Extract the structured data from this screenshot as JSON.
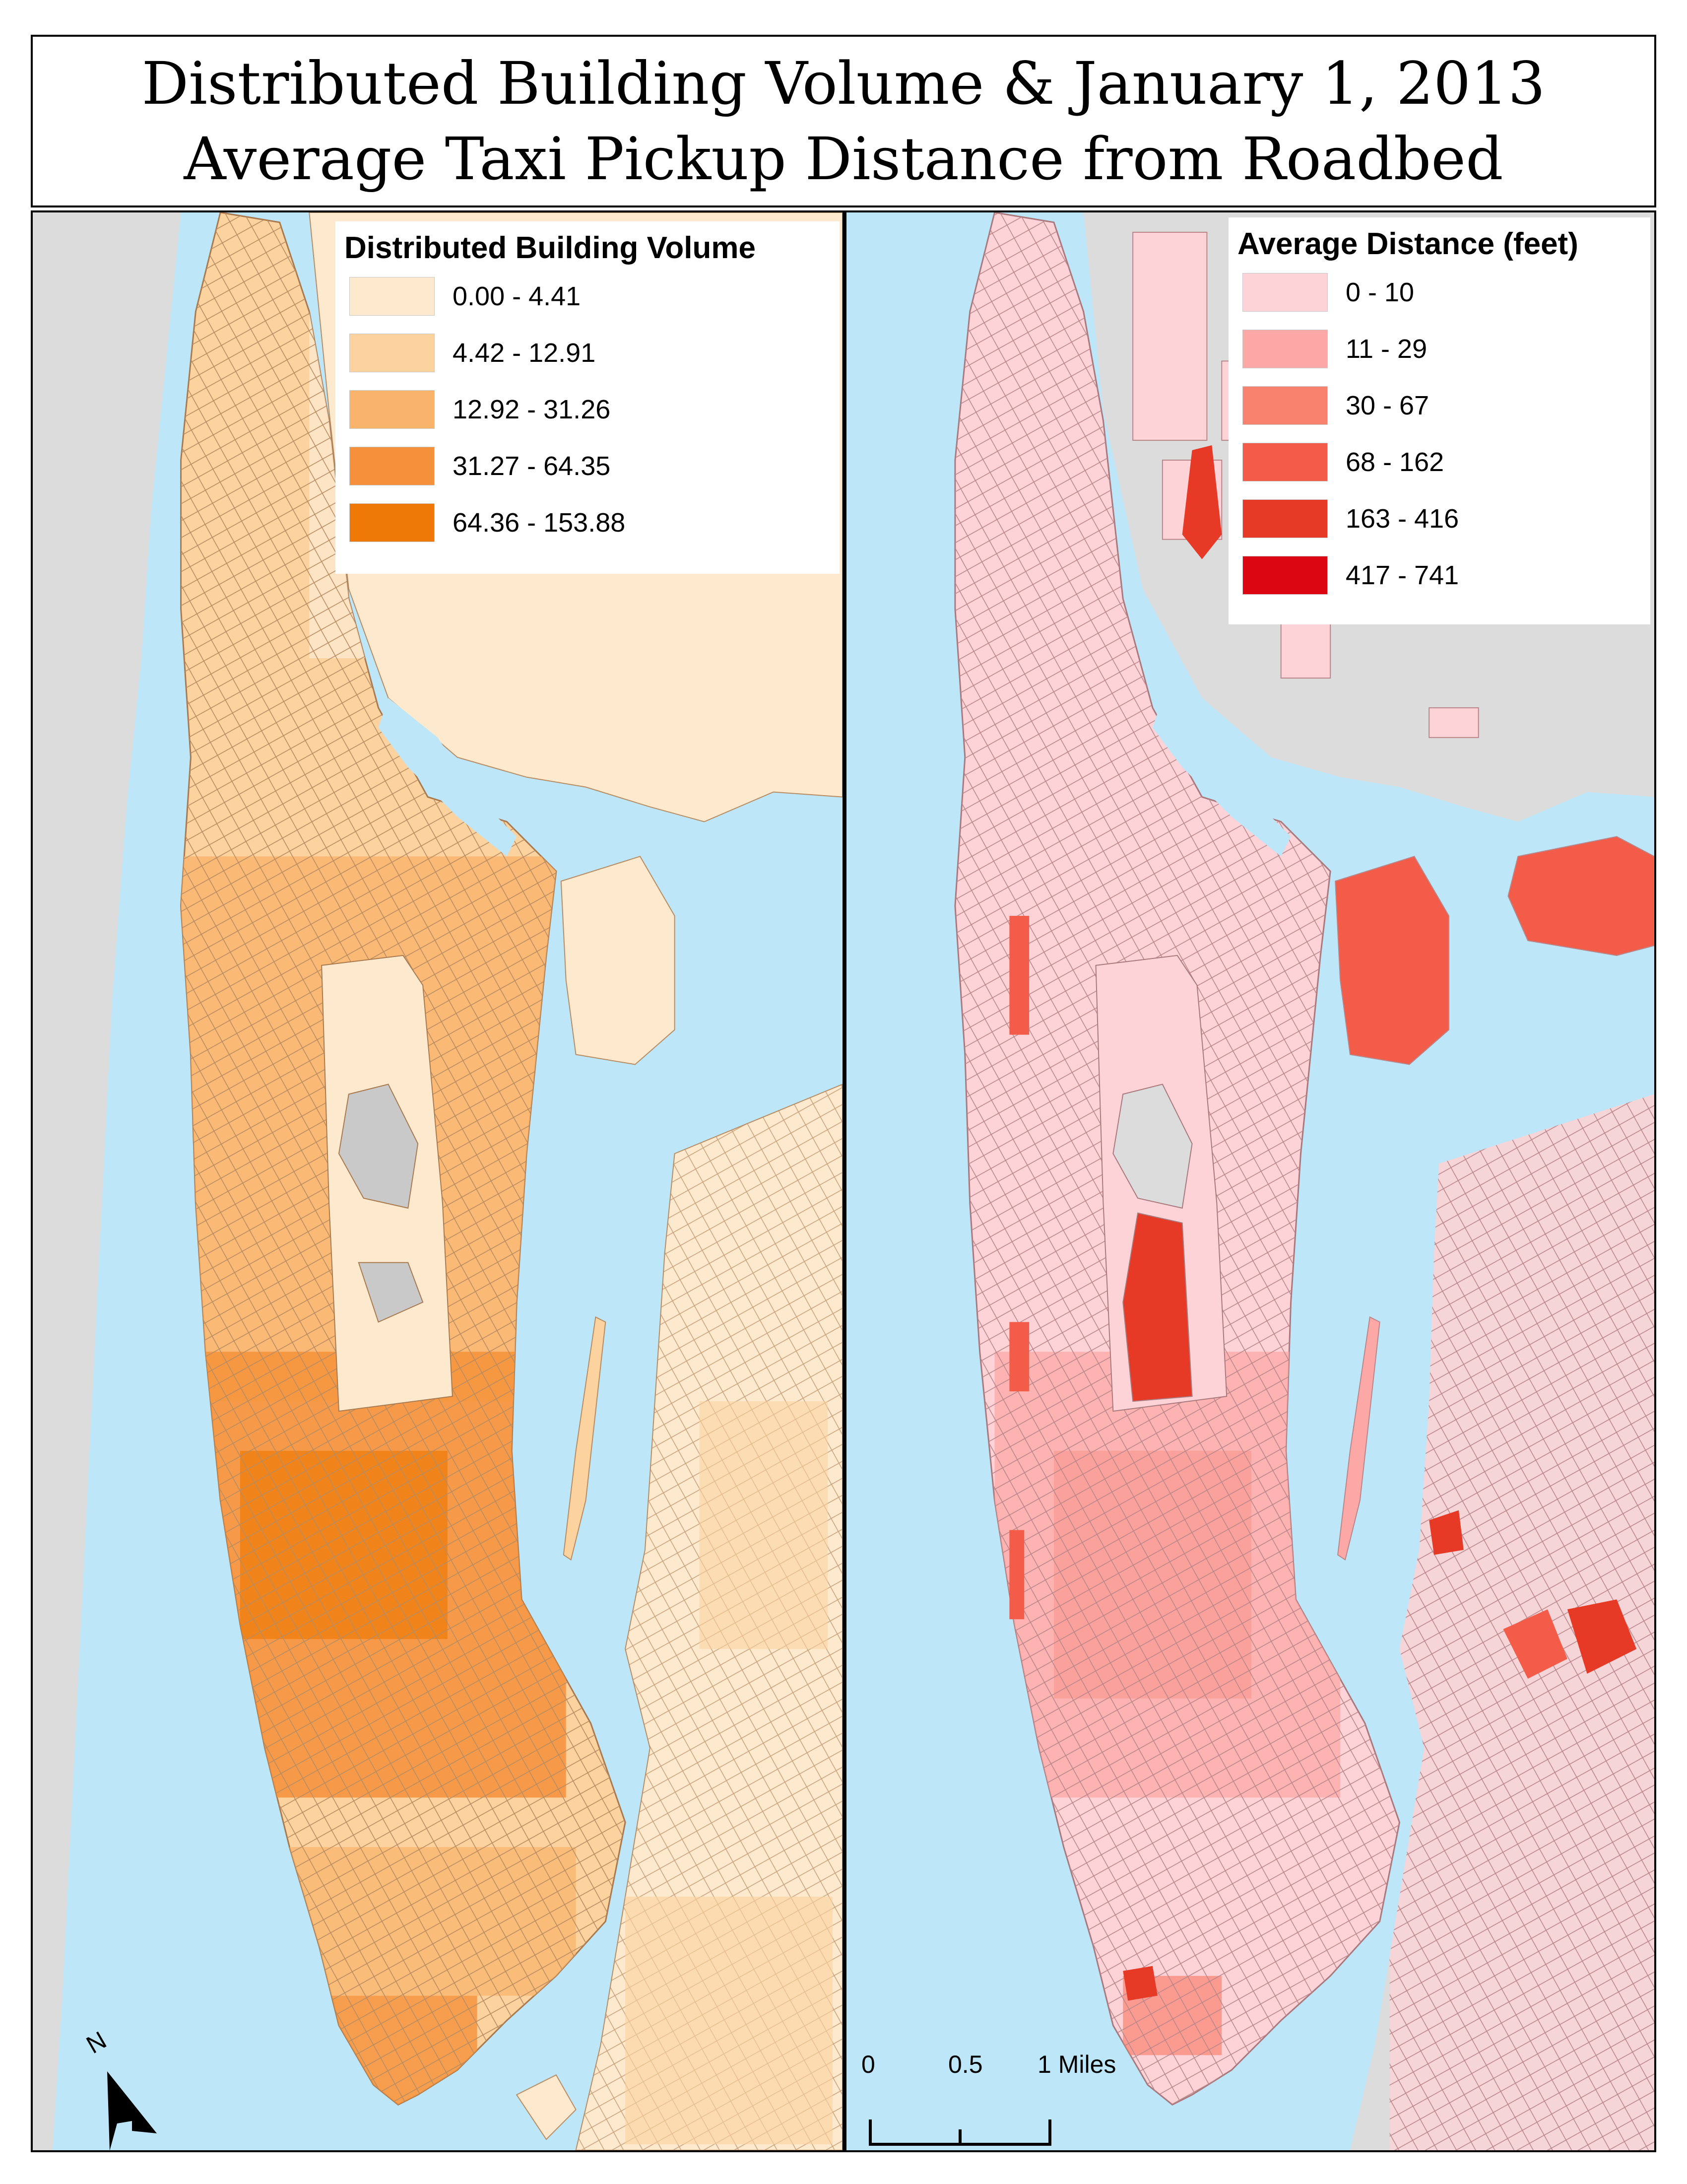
{
  "title": {
    "line1": "Distributed Building Volume & January 1, 2013",
    "line2": "Average Taxi Pickup Distance from Roadbed"
  },
  "colors": {
    "water": "#bde6f8",
    "land_outside": "#dcdcdc",
    "park_gray": "#c9c9c9",
    "panel_border": "#000000"
  },
  "left_map": {
    "legend_title": "Distributed Building Volume",
    "classes": [
      {
        "label": "0.00 - 4.41",
        "color": "#fde9cd"
      },
      {
        "label": "4.42 - 12.91",
        "color": "#fcd29e"
      },
      {
        "label": "12.92 - 31.26",
        "color": "#f9b36a"
      },
      {
        "label": "31.27 - 64.35",
        "color": "#f4913a"
      },
      {
        "label": "64.36 - 153.88",
        "color": "#ee7906"
      }
    ],
    "north_label": "N"
  },
  "right_map": {
    "legend_title": "Average Distance (feet)",
    "classes": [
      {
        "label": "0 - 10",
        "color": "#fdd3d7"
      },
      {
        "label": "11 - 29",
        "color": "#fba8a6"
      },
      {
        "label": "30 - 67",
        "color": "#f9826f"
      },
      {
        "label": "68 - 162",
        "color": "#f25c48"
      },
      {
        "label": "163 - 416",
        "color": "#e63a27"
      },
      {
        "label": "417 - 741",
        "color": "#db0611"
      }
    ],
    "scale_labels": [
      "0",
      "0.5",
      "1 Miles"
    ]
  }
}
